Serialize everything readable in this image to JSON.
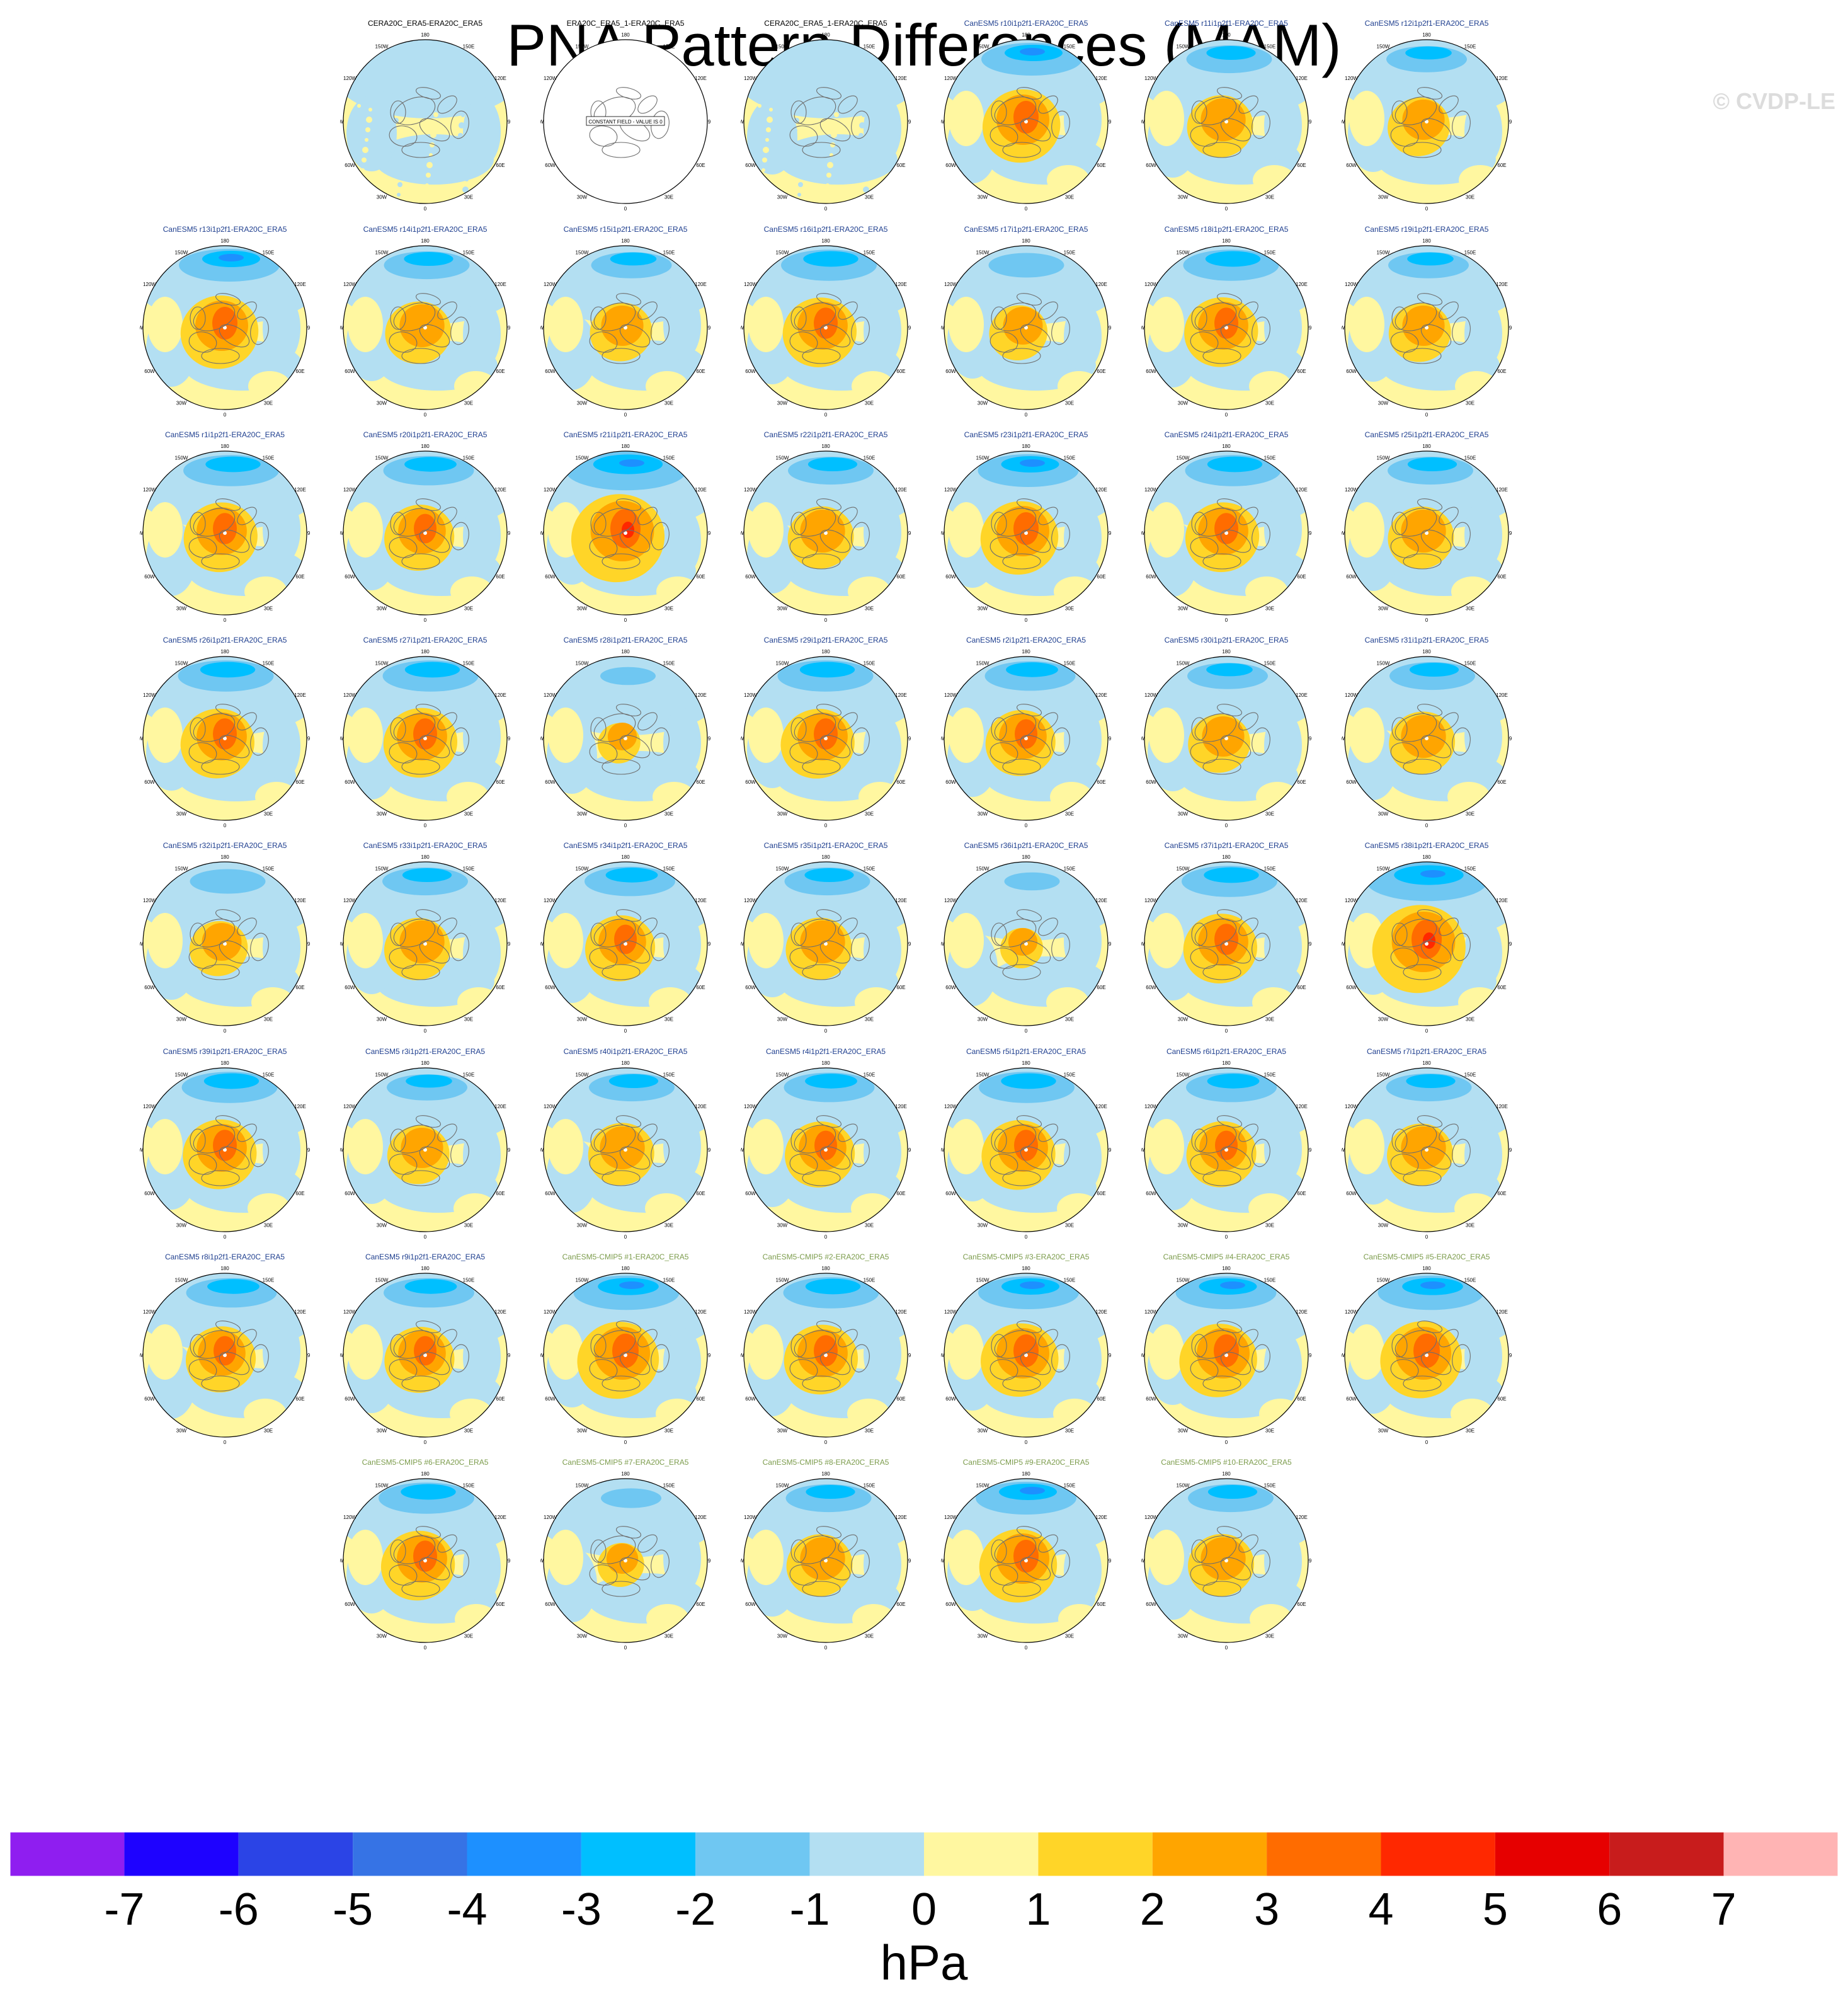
{
  "title": "PNA Pattern Differences (MAM)",
  "copyright": "© CVDP-LE",
  "colors": {
    "obs_title": "#000000",
    "large_ensemble_title": "#1f3f8f",
    "cmip_title": "#7c9c4c",
    "land_outline": "#6e6e6e"
  },
  "panel_map": {
    "lon_labels": [
      "180",
      "150E",
      "120E",
      "90E",
      "60E",
      "30E",
      "0",
      "30W",
      "60W",
      "90W",
      "120W",
      "150W"
    ],
    "empty_field_label": "CONSTANT FIELD - VALUE IS 0"
  },
  "colorbar": {
    "colors": [
      "#8f1ef0",
      "#1e02ff",
      "#2b44e6",
      "#3673e5",
      "#1d90ff",
      "#00bfff",
      "#6fc7f2",
      "#b3dff2",
      "#fff7a0",
      "#ffd528",
      "#ffa500",
      "#ff6c00",
      "#ff2800",
      "#e60000",
      "#c81c1c",
      "#ffb4b4"
    ],
    "labels": [
      "-7",
      "-6",
      "-5",
      "-4",
      "-3",
      "-2",
      "-1",
      "0",
      "1",
      "2",
      "3",
      "4",
      "5",
      "6",
      "7"
    ],
    "units": "hPa"
  },
  "chart_data": {
    "type": "heatmap",
    "title": "PNA Pattern Differences (MAM)",
    "colorbar_units": "hPa",
    "colorbar_ticks": [
      -7,
      -6,
      -5,
      -4,
      -3,
      -2,
      -1,
      0,
      1,
      2,
      3,
      4,
      5,
      6,
      7
    ],
    "projection": "north polar stereographic",
    "panels": [
      {
        "row": 0,
        "col": 1,
        "label": "CERA20C_ERA5-ERA20C_ERA5",
        "kind": "obs",
        "amp": 0.25
      },
      {
        "row": 0,
        "col": 2,
        "label": "ERA20C_ERA5_1-ERA20C_ERA5",
        "kind": "obs",
        "amp": 0,
        "empty": true
      },
      {
        "row": 0,
        "col": 3,
        "label": "CERA20C_ERA5_1-ERA20C_ERA5",
        "kind": "obs",
        "amp": 0.25
      },
      {
        "row": 0,
        "col": 4,
        "label": "CanESM5 r10i1p2f1-ERA20C_ERA5",
        "kind": "le",
        "amp": 1.0
      },
      {
        "row": 0,
        "col": 5,
        "label": "CanESM5 r11i1p2f1-ERA20C_ERA5",
        "kind": "le",
        "amp": 0.85
      },
      {
        "row": 0,
        "col": 6,
        "label": "CanESM5 r12i1p2f1-ERA20C_ERA5",
        "kind": "le",
        "amp": 0.8
      },
      {
        "row": 1,
        "col": 0,
        "label": "CanESM5 r13i1p2f1-ERA20C_ERA5",
        "kind": "le",
        "amp": 1.0
      },
      {
        "row": 1,
        "col": 1,
        "label": "CanESM5 r14i1p2f1-ERA20C_ERA5",
        "kind": "le",
        "amp": 0.85
      },
      {
        "row": 1,
        "col": 2,
        "label": "CanESM5 r15i1p2f1-ERA20C_ERA5",
        "kind": "le",
        "amp": 0.8
      },
      {
        "row": 1,
        "col": 3,
        "label": "CanESM5 r16i1p2f1-ERA20C_ERA5",
        "kind": "le",
        "amp": 0.95
      },
      {
        "row": 1,
        "col": 4,
        "label": "CanESM5 r17i1p2f1-ERA20C_ERA5",
        "kind": "le",
        "amp": 0.75
      },
      {
        "row": 1,
        "col": 5,
        "label": "CanESM5 r18i1p2f1-ERA20C_ERA5",
        "kind": "le",
        "amp": 0.95
      },
      {
        "row": 1,
        "col": 6,
        "label": "CanESM5 r19i1p2f1-ERA20C_ERA5",
        "kind": "le",
        "amp": 0.8
      },
      {
        "row": 2,
        "col": 0,
        "label": "CanESM5 r1i1p2f1-ERA20C_ERA5",
        "kind": "le",
        "amp": 0.95
      },
      {
        "row": 2,
        "col": 1,
        "label": "CanESM5 r20i1p2f1-ERA20C_ERA5",
        "kind": "le",
        "amp": 0.9
      },
      {
        "row": 2,
        "col": 2,
        "label": "CanESM5 r21i1p2f1-ERA20C_ERA5",
        "kind": "le",
        "amp": 1.2
      },
      {
        "row": 2,
        "col": 3,
        "label": "CanESM5 r22i1p2f1-ERA20C_ERA5",
        "kind": "le",
        "amp": 0.85
      },
      {
        "row": 2,
        "col": 4,
        "label": "CanESM5 r23i1p2f1-ERA20C_ERA5",
        "kind": "le",
        "amp": 1.0
      },
      {
        "row": 2,
        "col": 5,
        "label": "CanESM5 r24i1p2f1-ERA20C_ERA5",
        "kind": "le",
        "amp": 0.95
      },
      {
        "row": 2,
        "col": 6,
        "label": "CanESM5 r25i1p2f1-ERA20C_ERA5",
        "kind": "le",
        "amp": 0.85
      },
      {
        "row": 3,
        "col": 0,
        "label": "CanESM5 r26i1p2f1-ERA20C_ERA5",
        "kind": "le",
        "amp": 0.95
      },
      {
        "row": 3,
        "col": 1,
        "label": "CanESM5 r27i1p2f1-ERA20C_ERA5",
        "kind": "le",
        "amp": 0.95
      },
      {
        "row": 3,
        "col": 2,
        "label": "CanESM5 r28i1p2f1-ERA20C_ERA5",
        "kind": "le",
        "amp": 0.55
      },
      {
        "row": 3,
        "col": 3,
        "label": "CanESM5 r29i1p2f1-ERA20C_ERA5",
        "kind": "le",
        "amp": 0.95
      },
      {
        "row": 3,
        "col": 4,
        "label": "CanESM5 r2i1p2f1-ERA20C_ERA5",
        "kind": "le",
        "amp": 0.9
      },
      {
        "row": 3,
        "col": 5,
        "label": "CanESM5 r30i1p2f1-ERA20C_ERA5",
        "kind": "le",
        "amp": 0.8
      },
      {
        "row": 3,
        "col": 6,
        "label": "CanESM5 r31i1p2f1-ERA20C_ERA5",
        "kind": "le",
        "amp": 0.85
      },
      {
        "row": 4,
        "col": 0,
        "label": "CanESM5 r32i1p2f1-ERA20C_ERA5",
        "kind": "le",
        "amp": 0.75
      },
      {
        "row": 4,
        "col": 1,
        "label": "CanESM5 r33i1p2f1-ERA20C_ERA5",
        "kind": "le",
        "amp": 0.85
      },
      {
        "row": 4,
        "col": 2,
        "label": "CanESM5 r34i1p2f1-ERA20C_ERA5",
        "kind": "le",
        "amp": 0.9
      },
      {
        "row": 4,
        "col": 3,
        "label": "CanESM5 r35i1p2f1-ERA20C_ERA5",
        "kind": "le",
        "amp": 0.85
      },
      {
        "row": 4,
        "col": 4,
        "label": "CanESM5 r36i1p2f1-ERA20C_ERA5",
        "kind": "le",
        "amp": 0.55
      },
      {
        "row": 4,
        "col": 5,
        "label": "CanESM5 r37i1p2f1-ERA20C_ERA5",
        "kind": "le",
        "amp": 0.95
      },
      {
        "row": 4,
        "col": 6,
        "label": "CanESM5 r38i1p2f1-ERA20C_ERA5",
        "kind": "le",
        "amp": 1.2
      },
      {
        "row": 5,
        "col": 0,
        "label": "CanESM5 r39i1p2f1-ERA20C_ERA5",
        "kind": "le",
        "amp": 0.95
      },
      {
        "row": 5,
        "col": 1,
        "label": "CanESM5 r3i1p2f1-ERA20C_ERA5",
        "kind": "le",
        "amp": 0.8
      },
      {
        "row": 5,
        "col": 2,
        "label": "CanESM5 r40i1p2f1-ERA20C_ERA5",
        "kind": "le",
        "amp": 0.85
      },
      {
        "row": 5,
        "col": 3,
        "label": "CanESM5 r4i1p2f1-ERA20C_ERA5",
        "kind": "le",
        "amp": 0.9
      },
      {
        "row": 5,
        "col": 4,
        "label": "CanESM5 r5i1p2f1-ERA20C_ERA5",
        "kind": "le",
        "amp": 0.95
      },
      {
        "row": 5,
        "col": 5,
        "label": "CanESM5 r6i1p2f1-ERA20C_ERA5",
        "kind": "le",
        "amp": 0.9
      },
      {
        "row": 5,
        "col": 6,
        "label": "CanESM5 r7i1p2f1-ERA20C_ERA5",
        "kind": "le",
        "amp": 0.85
      },
      {
        "row": 6,
        "col": 0,
        "label": "CanESM5 r8i1p2f1-ERA20C_ERA5",
        "kind": "le",
        "amp": 0.9
      },
      {
        "row": 6,
        "col": 1,
        "label": "CanESM5 r9i1p2f1-ERA20C_ERA5",
        "kind": "le",
        "amp": 0.9
      },
      {
        "row": 6,
        "col": 2,
        "label": "CanESM5-CMIP5 #1-ERA20C_ERA5",
        "kind": "cmip",
        "amp": 1.05
      },
      {
        "row": 6,
        "col": 3,
        "label": "CanESM5-CMIP5 #2-ERA20C_ERA5",
        "kind": "cmip",
        "amp": 0.95
      },
      {
        "row": 6,
        "col": 4,
        "label": "CanESM5-CMIP5 #3-ERA20C_ERA5",
        "kind": "cmip",
        "amp": 1.0
      },
      {
        "row": 6,
        "col": 5,
        "label": "CanESM5-CMIP5 #4-ERA20C_ERA5",
        "kind": "cmip",
        "amp": 1.0
      },
      {
        "row": 6,
        "col": 6,
        "label": "CanESM5-CMIP5 #5-ERA20C_ERA5",
        "kind": "cmip",
        "amp": 1.05
      },
      {
        "row": 7,
        "col": 1,
        "label": "CanESM5-CMIP5 #6-ERA20C_ERA5",
        "kind": "cmip",
        "amp": 0.95
      },
      {
        "row": 7,
        "col": 2,
        "label": "CanESM5-CMIP5 #7-ERA20C_ERA5",
        "kind": "cmip",
        "amp": 0.6
      },
      {
        "row": 7,
        "col": 3,
        "label": "CanESM5-CMIP5 #8-ERA20C_ERA5",
        "kind": "cmip",
        "amp": 0.85
      },
      {
        "row": 7,
        "col": 4,
        "label": "CanESM5-CMIP5 #9-ERA20C_ERA5",
        "kind": "cmip",
        "amp": 1.0
      },
      {
        "row": 7,
        "col": 5,
        "label": "CanESM5-CMIP5 #10-ERA20C_ERA5",
        "kind": "cmip",
        "amp": 0.85
      }
    ]
  }
}
